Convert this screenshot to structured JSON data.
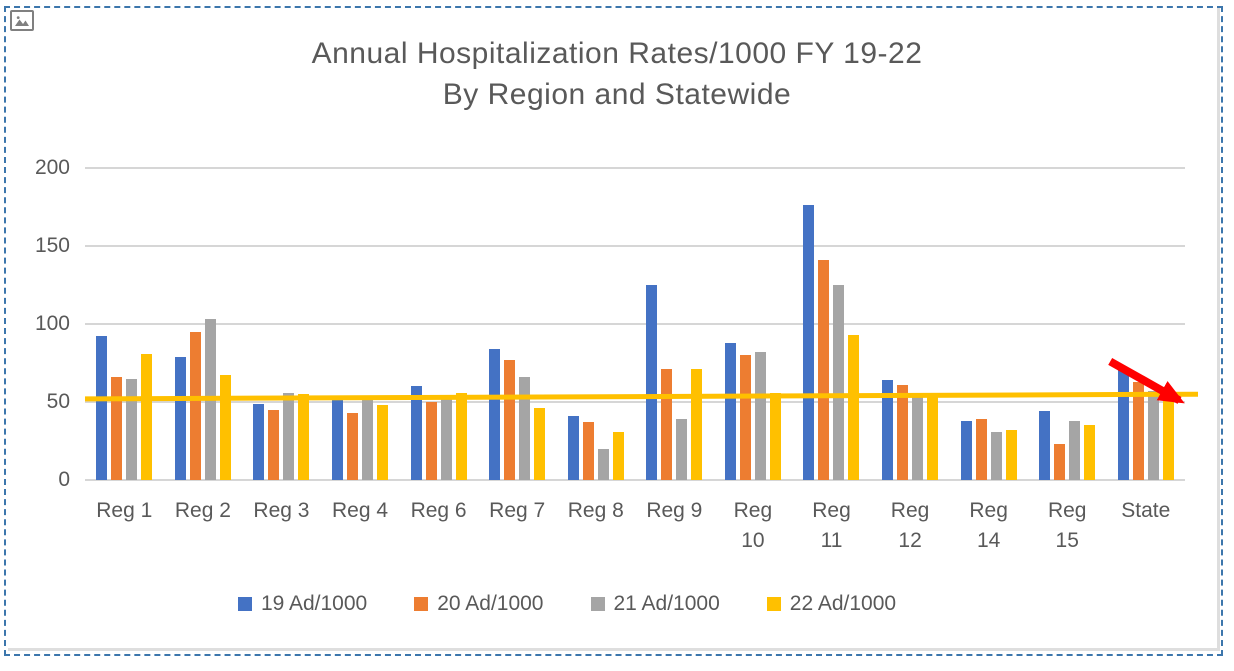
{
  "window": {
    "background": "#ffffff",
    "selection_border_color": "#3c76ac",
    "text_color": "#595959"
  },
  "chart_data": {
    "type": "bar",
    "title": "Annual Hospitalization Rates/1000 FY 19-22 By Region and Statewide",
    "title_lines": [
      "Annual Hospitalization Rates/1000 FY 19-22",
      "By Region and Statewide"
    ],
    "categories": [
      "Reg 1",
      "Reg 2",
      "Reg 3",
      "Reg 4",
      "Reg 6",
      "Reg 7",
      "Reg 8",
      "Reg 9",
      "Reg 10",
      "Reg 11",
      "Reg 12",
      "Reg 14",
      "Reg 15",
      "State"
    ],
    "tick_labels": [
      "Reg 1",
      "Reg 2",
      "Reg 3",
      "Reg 4",
      "Reg 6",
      "Reg 7",
      "Reg 8",
      "Reg 9",
      "Reg\n10",
      "Reg\n11",
      "Reg\n12",
      "Reg\n14",
      "Reg\n15",
      "State"
    ],
    "series": [
      {
        "name": "19 Ad/1000",
        "color": "#4472C4",
        "values": [
          92,
          79,
          49,
          51,
          60,
          84,
          41,
          125,
          88,
          176,
          64,
          38,
          44,
          72
        ]
      },
      {
        "name": "20 Ad/1000",
        "color": "#ED7D31",
        "values": [
          66,
          95,
          45,
          43,
          50,
          77,
          37,
          71,
          80,
          141,
          61,
          39,
          23,
          63
        ]
      },
      {
        "name": "21 Ad/1000",
        "color": "#A5A5A5",
        "values": [
          65,
          103,
          56,
          51,
          52,
          66,
          20,
          39,
          82,
          125,
          53,
          31,
          38,
          57
        ]
      },
      {
        "name": "22 Ad/1000",
        "color": "#FFC000",
        "values": [
          81,
          67,
          55,
          48,
          56,
          46,
          31,
          71,
          56,
          93,
          54,
          32,
          35,
          55
        ]
      }
    ],
    "y_ticks": [
      200,
      150,
      100,
      50,
      0
    ],
    "ylim": [
      0,
      200
    ],
    "grid": true,
    "gridline_color": "#d6d6d6",
    "legend_position": "bottom",
    "trendline": {
      "series": "22 Ad/1000",
      "start_value": 52,
      "end_value": 55,
      "color": "#FFC000"
    },
    "annotation_arrow": {
      "color": "#FF0000",
      "x1_frac": 0.932,
      "y1_value": 76,
      "x2_frac": 0.995,
      "y2_value": 51
    }
  }
}
